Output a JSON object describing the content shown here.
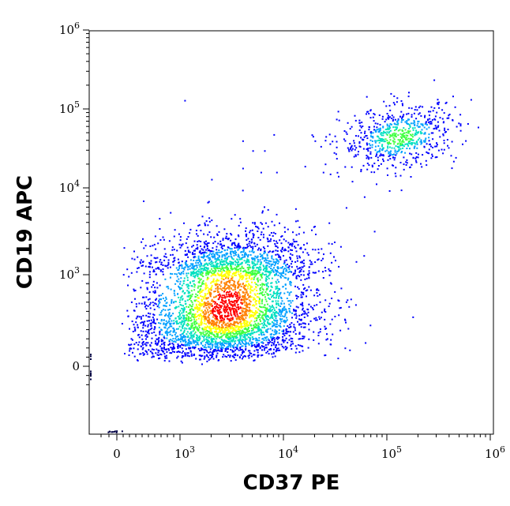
{
  "chart_data": {
    "type": "scatter",
    "subtype": "flow-cytometry-density-dot-plot",
    "xlabel": "CD37 PE",
    "ylabel": "CD19 APC",
    "x_scale": "biexponential (log above ~10^3)",
    "y_scale": "biexponential (log above ~10^3)",
    "xlim": [
      -300,
      1200000
    ],
    "ylim": [
      -300,
      1200000
    ],
    "x_ticks": [
      {
        "value": 0,
        "base": "0",
        "exp": ""
      },
      {
        "value": 1000,
        "base": "10",
        "exp": "3"
      },
      {
        "value": 10000,
        "base": "10",
        "exp": "4"
      },
      {
        "value": 100000,
        "base": "10",
        "exp": "5"
      },
      {
        "value": 1000000,
        "base": "10",
        "exp": "6"
      }
    ],
    "y_ticks": [
      {
        "value": 0,
        "base": "0",
        "exp": ""
      },
      {
        "value": 1000,
        "base": "10",
        "exp": "3"
      },
      {
        "value": 10000,
        "base": "10",
        "exp": "4"
      },
      {
        "value": 100000,
        "base": "10",
        "exp": "5"
      },
      {
        "value": 1000000,
        "base": "10",
        "exp": "6"
      }
    ],
    "grid": false,
    "legend": "none",
    "color_map": [
      "#0000ff",
      "#00a0ff",
      "#00e0c0",
      "#40ff40",
      "#ffff00",
      "#ff8000",
      "#ff0000"
    ],
    "populations": [
      {
        "x_center": 2800,
        "y_center": 650,
        "x_spread_decades": 0.42,
        "y_spread_decades": 0.32,
        "events": 4200,
        "peak_density": "high"
      },
      {
        "x_center": 130000,
        "y_center": 45000,
        "x_spread_decades": 0.28,
        "y_spread_decades": 0.2,
        "events": 700,
        "peak_density": "medium"
      }
    ],
    "outliers": [
      {
        "x": 1100,
        "y": 130000
      },
      {
        "x": 4000,
        "y": 40000
      },
      {
        "x": 5000,
        "y": 30000
      },
      {
        "x": 6500,
        "y": 30000
      },
      {
        "x": 8000,
        "y": 48000
      },
      {
        "x": 4000,
        "y": 18000
      },
      {
        "x": 6000,
        "y": 16000
      },
      {
        "x": 8500,
        "y": 16000
      },
      {
        "x": 2000,
        "y": 13000
      },
      {
        "x": 16000,
        "y": 19000
      },
      {
        "x": 20000,
        "y": 40000
      },
      {
        "x": 24000,
        "y": 16000
      },
      {
        "x": 40000,
        "y": 6000
      },
      {
        "x": 60000,
        "y": 8000
      },
      {
        "x": 75000,
        "y": 3200
      },
      {
        "x": 7000,
        "y": 5700
      },
      {
        "x": 9000,
        "y": 4000
      },
      {
        "x": 13000,
        "y": 4200
      },
      {
        "x": 16000,
        "y": 2000
      },
      {
        "x": 1100000,
        "y": 40000
      },
      {
        "x": 600000,
        "y": 66000
      }
    ]
  }
}
